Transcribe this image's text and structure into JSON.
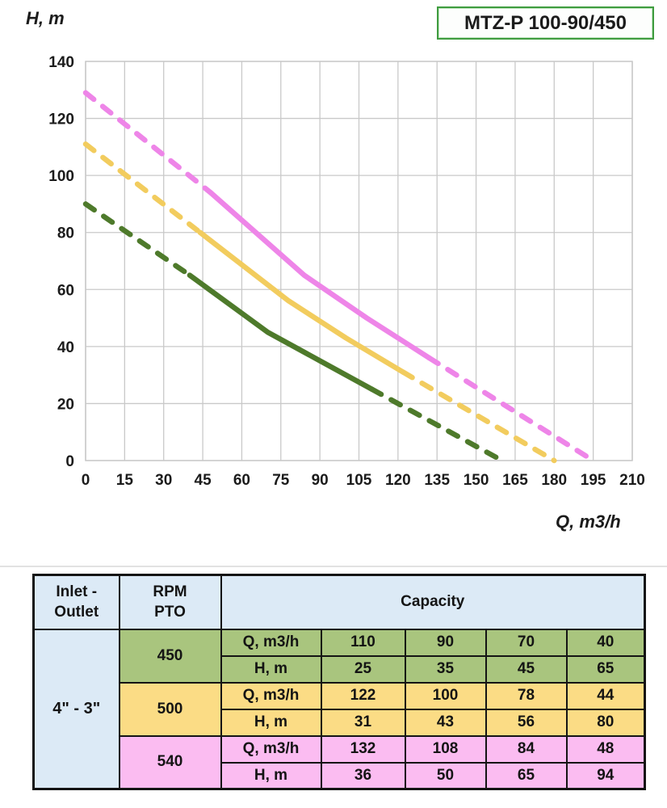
{
  "chart_data": {
    "type": "line",
    "title": "MTZ-P 100-90/450",
    "xlabel": "Q, m3/h",
    "ylabel": "H, m",
    "xlim": [
      0,
      210
    ],
    "ylim": [
      0,
      140
    ],
    "x_ticks": [
      0,
      15,
      30,
      45,
      60,
      75,
      90,
      105,
      120,
      135,
      150,
      165,
      180,
      195,
      210
    ],
    "y_ticks": [
      0,
      20,
      40,
      60,
      80,
      100,
      120,
      140
    ],
    "grid": true,
    "grid_color": "#c9c9c9",
    "legend_position": "none",
    "series": [
      {
        "name": "450 RPM",
        "color": "#4e7a2b",
        "dashed_head_start": {
          "q": 0,
          "h": 90
        },
        "solid_points": [
          [
            40,
            65
          ],
          [
            70,
            45
          ],
          [
            90,
            35
          ],
          [
            110,
            25
          ]
        ],
        "dashed_tail_end": {
          "q": 160,
          "h": 0
        }
      },
      {
        "name": "500 RPM",
        "color": "#f2cc5e",
        "dashed_head_start": {
          "q": 0,
          "h": 111
        },
        "solid_points": [
          [
            44,
            80
          ],
          [
            78,
            56
          ],
          [
            100,
            43
          ],
          [
            122,
            31
          ]
        ],
        "dashed_tail_end": {
          "q": 180,
          "h": 0
        }
      },
      {
        "name": "540 RPM",
        "color": "#ee85e8",
        "dashed_head_start": {
          "q": 0,
          "h": 129
        },
        "solid_points": [
          [
            48,
            94
          ],
          [
            84,
            65
          ],
          [
            108,
            50
          ],
          [
            132,
            36
          ]
        ],
        "dashed_tail_end": {
          "q": 195,
          "h": 0
        }
      }
    ]
  },
  "table": {
    "header": {
      "col1": [
        "Inlet -",
        "Outlet"
      ],
      "col2": [
        "RPM",
        "PTO"
      ],
      "capacity": "Capacity"
    },
    "inlet_outlet": "4\" - 3\"",
    "colors": {
      "header_bg": "#dceaf6",
      "inlet_bg": "#dceaf6",
      "border": "#141414"
    },
    "groups": [
      {
        "rpm": "450",
        "color": "#a9c57e",
        "rows": [
          {
            "label": "Q, m3/h",
            "values": [
              "110",
              "90",
              "70",
              "40"
            ]
          },
          {
            "label": "H, m",
            "values": [
              "25",
              "35",
              "45",
              "65"
            ]
          }
        ]
      },
      {
        "rpm": "500",
        "color": "#fbdc85",
        "rows": [
          {
            "label": "Q, m3/h",
            "values": [
              "122",
              "100",
              "78",
              "44"
            ]
          },
          {
            "label": "H, m",
            "values": [
              "31",
              "43",
              "56",
              "80"
            ]
          }
        ]
      },
      {
        "rpm": "540",
        "color": "#fbbcf1",
        "rows": [
          {
            "label": "Q, m3/h",
            "values": [
              "132",
              "108",
              "84",
              "48"
            ]
          },
          {
            "label": "H, m",
            "values": [
              "36",
              "50",
              "65",
              "94"
            ]
          }
        ]
      }
    ]
  }
}
